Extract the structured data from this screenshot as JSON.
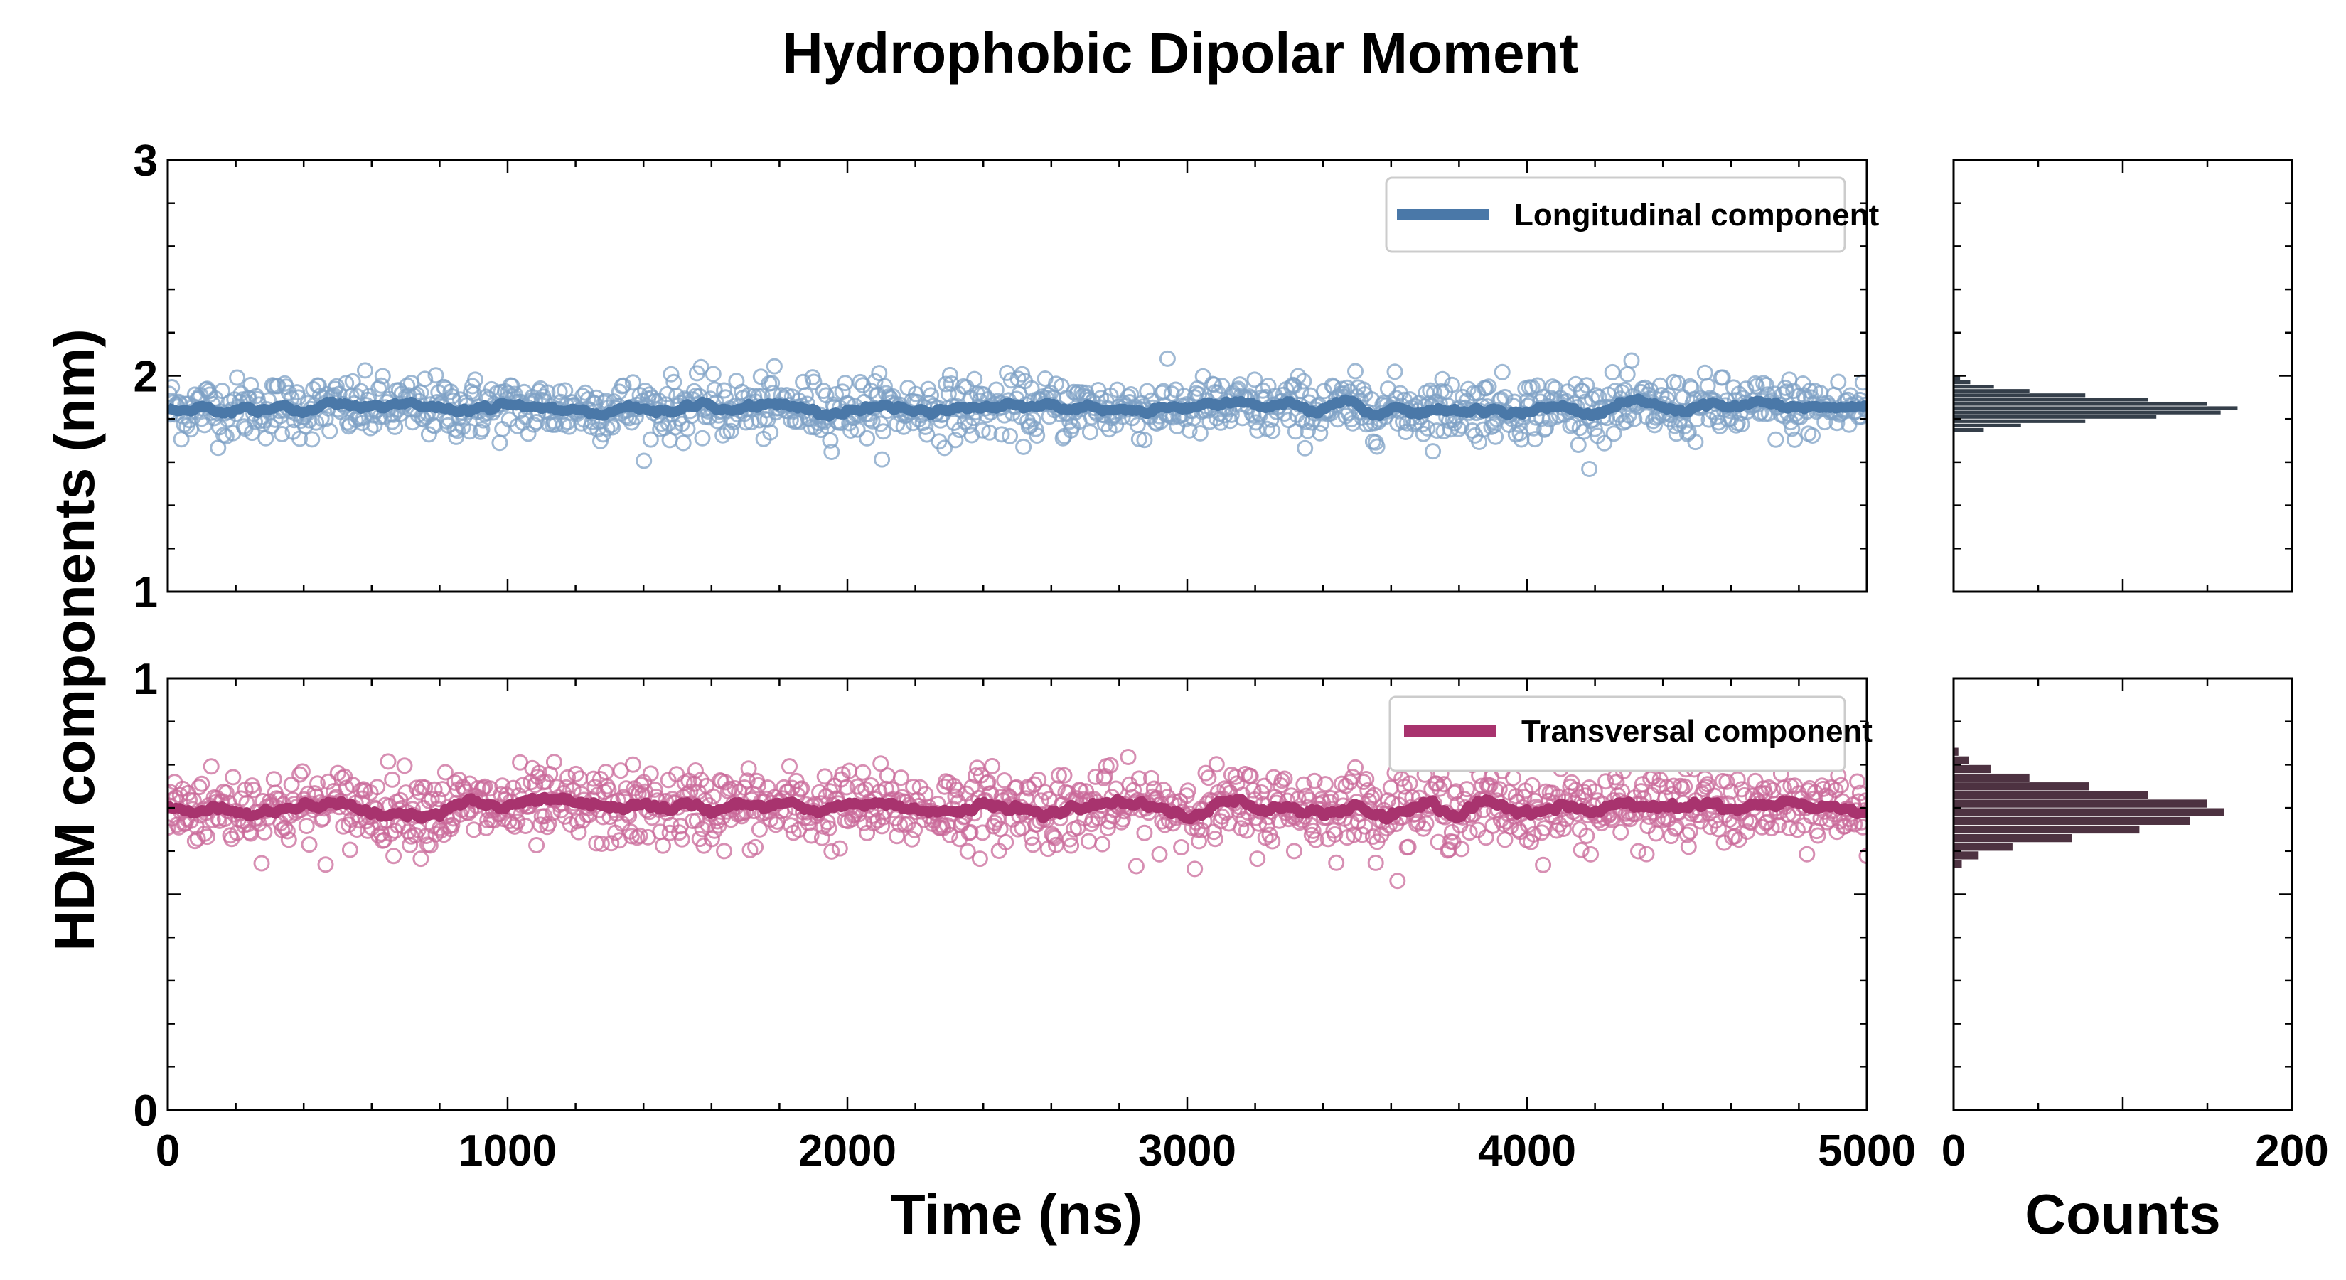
{
  "title": "Hydrophobic Dipolar Moment",
  "colors": {
    "longitudinal": "#4a78a8",
    "longitudinal_points": "#7fa2c6",
    "transversal": "#a8336e",
    "transversal_points": "#c9699a",
    "histogram_top": "#1f2a36",
    "histogram_bottom": "#3a1c2c"
  },
  "chart_data": [
    {
      "type": "scatter",
      "panel": "top-left",
      "series": [
        {
          "name": "Longitudinal component",
          "mean": 1.85,
          "spread": 0.07,
          "running_average": true
        }
      ],
      "xlim": [
        0,
        5000
      ],
      "ylim": [
        1,
        3
      ],
      "xticks": [
        0,
        1000,
        2000,
        3000,
        4000,
        5000
      ],
      "yticks": [
        1,
        2,
        3
      ],
      "legend": "top-right"
    },
    {
      "type": "scatter",
      "panel": "bottom-left",
      "series": [
        {
          "name": "Transversal component",
          "mean": 0.7,
          "spread": 0.045,
          "running_average": true
        }
      ],
      "xlim": [
        0,
        5000
      ],
      "ylim": [
        0,
        1
      ],
      "xticks": [
        0,
        1000,
        2000,
        3000,
        4000,
        5000
      ],
      "yticks": [
        0,
        1
      ],
      "xlabel": "Time (ns)",
      "legend": "top-right"
    },
    {
      "type": "bar",
      "orientation": "horizontal",
      "panel": "top-right",
      "ylim": [
        1,
        3
      ],
      "xlim": [
        0,
        200
      ],
      "bins": [
        1.75,
        1.77,
        1.79,
        1.81,
        1.83,
        1.85,
        1.87,
        1.89,
        1.91,
        1.93,
        1.95,
        1.97,
        1.99
      ],
      "counts": [
        18,
        40,
        78,
        120,
        158,
        168,
        150,
        115,
        78,
        45,
        24,
        10,
        4
      ]
    },
    {
      "type": "bar",
      "orientation": "horizontal",
      "panel": "bottom-right",
      "ylim": [
        0,
        1
      ],
      "xlim": [
        0,
        200
      ],
      "xticks": [
        0,
        200
      ],
      "xlabel": "Counts",
      "bins": [
        0.57,
        0.59,
        0.61,
        0.63,
        0.65,
        0.67,
        0.69,
        0.71,
        0.73,
        0.75,
        0.77,
        0.79,
        0.81,
        0.83
      ],
      "counts": [
        5,
        15,
        35,
        70,
        110,
        140,
        160,
        150,
        115,
        80,
        45,
        22,
        9,
        3
      ]
    }
  ],
  "ylabel": "HDM components (nm)",
  "legend_top": "Longitudinal component",
  "legend_bottom": "Transversal component"
}
